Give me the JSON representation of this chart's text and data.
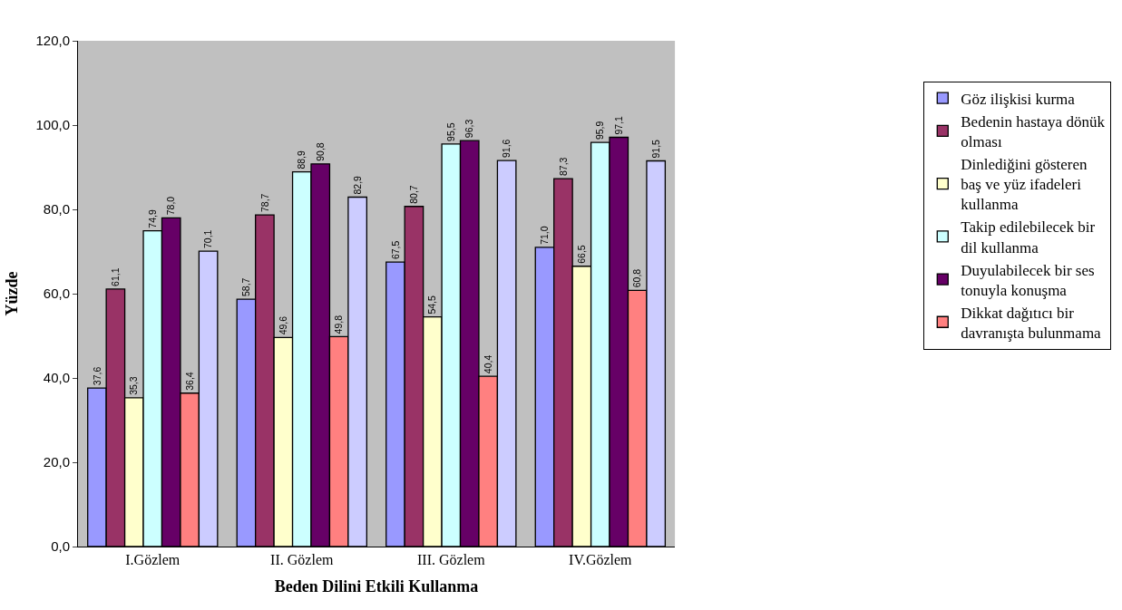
{
  "chart_data": {
    "type": "bar",
    "xlabel": "Beden Dilini Etkili Kullanma",
    "ylabel": "Yüzde",
    "categories": [
      "I.Gözlem",
      "II. Gözlem",
      "III. Gözlem",
      "IV.Gözlem"
    ],
    "series": [
      {
        "name": "Göz ilişkisi kurma",
        "color": "#9999ff",
        "values": [
          37.6,
          58.7,
          67.5,
          71.0
        ],
        "value_labels": [
          "37,6",
          "58,7",
          "67,5",
          "71,0"
        ]
      },
      {
        "name": "Bedenin hastaya dönük olması",
        "color": "#993366",
        "values": [
          61.1,
          78.7,
          80.7,
          87.3
        ],
        "value_labels": [
          "61,1",
          "78,7",
          "80,7",
          "87,3"
        ]
      },
      {
        "name": "Dinlediğini gösteren baş ve yüz ifadeleri kullanma",
        "color": "#ffffcc",
        "values": [
          35.3,
          49.6,
          54.5,
          66.5
        ],
        "value_labels": [
          "35,3",
          "49,6",
          "54,5",
          "66,5"
        ]
      },
      {
        "name": "Takip edilebilecek bir dil kullanma",
        "color": "#ccffff",
        "values": [
          74.9,
          88.9,
          95.5,
          95.9
        ],
        "value_labels": [
          "74,9",
          "88,9",
          "95,5",
          "95,9"
        ]
      },
      {
        "name": "Duyulabilecek bir ses tonuyla konuşma",
        "color": "#660066",
        "values": [
          78.0,
          90.8,
          96.3,
          97.1
        ],
        "value_labels": [
          "78,0",
          "90,8",
          "96,3",
          "97,1"
        ]
      },
      {
        "name": "Dikkat dağıtıcı bir davranışta bulunmama",
        "color": "#ff8080",
        "values": [
          36.4,
          49.8,
          40.4,
          60.8
        ],
        "value_labels": [
          "36,4",
          "49,8",
          "40,4",
          "60,8"
        ]
      },
      {
        "color": "#ccccff",
        "values": [
          70.1,
          82.9,
          91.6,
          91.5
        ],
        "value_labels": [
          "70,1",
          "82,9",
          "91,6",
          "91,5"
        ]
      }
    ],
    "ylim": [
      0,
      120
    ],
    "yticks": [
      {
        "value": 0,
        "label": "0,0"
      },
      {
        "value": 20,
        "label": "20,0"
      },
      {
        "value": 40,
        "label": "40,0"
      },
      {
        "value": 60,
        "label": "60,0"
      },
      {
        "value": 80,
        "label": "80,0"
      },
      {
        "value": 100,
        "label": "100,0"
      },
      {
        "value": 120,
        "label": "120,0"
      }
    ],
    "grid": false,
    "legend": "right"
  }
}
